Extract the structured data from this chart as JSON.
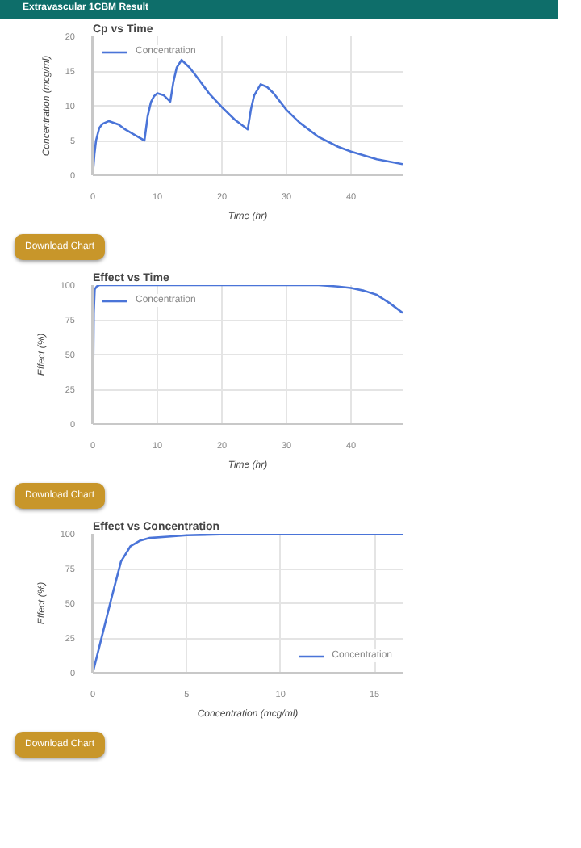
{
  "chart_data": [
    {
      "type": "other",
      "title": "Extravascular 1CBM Result"
    },
    {
      "type": "line",
      "title": "Cp vs Time",
      "xlabel": "Time (hr)",
      "ylabel": "Concentration (mcg/ml)",
      "legend": "top left",
      "grid": true,
      "xlim": [
        0,
        48
      ],
      "ylim": [
        0,
        20
      ],
      "xticks": [
        0,
        10,
        20,
        30,
        40
      ],
      "yticks": [
        0,
        5,
        10,
        15,
        20
      ],
      "annotations": [
        "Download Chart"
      ],
      "series": [
        {
          "name": "Concentration",
          "color": "#4a74d8",
          "x": [
            0,
            0.25,
            0.5,
            1,
            1.5,
            2.5,
            4,
            5,
            6.5,
            8,
            8.5,
            9,
            9.5,
            10,
            11,
            12,
            12.5,
            13,
            13.75,
            15,
            16,
            18,
            20,
            22,
            24,
            24.5,
            25,
            26,
            27,
            28,
            30,
            32,
            35,
            38,
            40,
            44,
            48
          ],
          "values": [
            0,
            3,
            5,
            6.8,
            7.4,
            7.8,
            7.3,
            6.6,
            5.8,
            5.0,
            8.5,
            10.5,
            11.4,
            11.8,
            11.5,
            10.6,
            13.5,
            15.5,
            16.6,
            15.5,
            14.3,
            11.8,
            9.8,
            8.0,
            6.6,
            9.5,
            11.5,
            13.1,
            12.7,
            11.8,
            9.4,
            7.6,
            5.5,
            4.1,
            3.4,
            2.3,
            1.6
          ]
        }
      ]
    },
    {
      "type": "line",
      "title": "Effect vs Time",
      "xlabel": "Time (hr)",
      "ylabel": "Effect (%)",
      "legend": "top left",
      "grid": true,
      "xlim": [
        0,
        48
      ],
      "ylim": [
        0,
        100
      ],
      "xticks": [
        0,
        10,
        20,
        30,
        40
      ],
      "yticks": [
        0,
        25,
        50,
        75,
        100
      ],
      "annotations": [
        "Download Chart"
      ],
      "series": [
        {
          "name": "Concentration",
          "color": "#4a74d8",
          "x": [
            0,
            0.15,
            0.3,
            0.6,
            1,
            5,
            10,
            20,
            30,
            35,
            38,
            40,
            42,
            44,
            46,
            48
          ],
          "values": [
            0,
            80,
            97,
            99,
            100,
            100,
            100,
            100,
            100,
            100,
            99,
            98,
            96,
            93,
            87,
            80
          ]
        }
      ]
    },
    {
      "type": "line",
      "title": "Effect vs Concentration",
      "xlabel": "Concentration (mcg/ml)",
      "ylabel": "Effect (%)",
      "legend": "bottom right",
      "grid": true,
      "xlim": [
        0,
        16.5
      ],
      "ylim": [
        0,
        100
      ],
      "xticks": [
        0,
        5,
        10,
        15
      ],
      "yticks": [
        0,
        25,
        50,
        75,
        100
      ],
      "annotations": [
        "Download Chart"
      ],
      "series": [
        {
          "name": "Concentration",
          "color": "#4a74d8",
          "x": [
            0,
            0.5,
            1,
            1.5,
            2,
            2.5,
            3,
            4,
            5,
            8,
            12,
            16.5
          ],
          "values": [
            0,
            27,
            54,
            80,
            91,
            95,
            97,
            98,
            99,
            100,
            100,
            100
          ]
        }
      ]
    }
  ]
}
